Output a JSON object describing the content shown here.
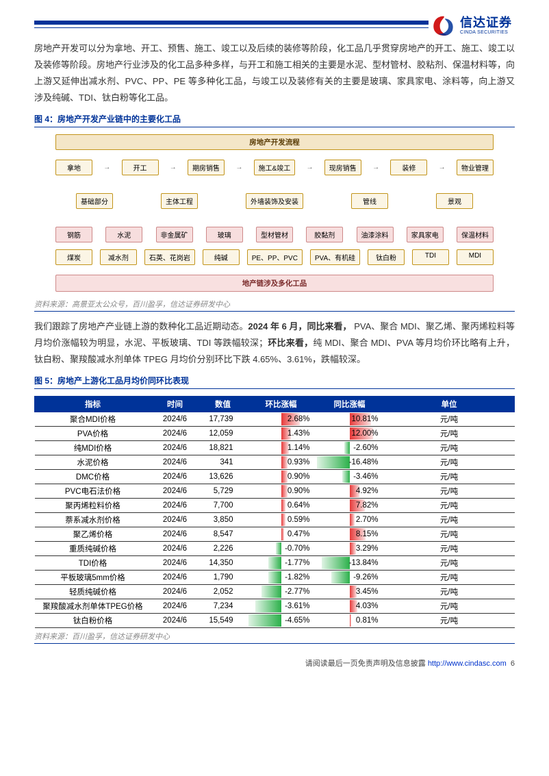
{
  "colors": {
    "brand": "#003399",
    "pos_bar": "#e63939",
    "neg_bar": "#2bb04a"
  },
  "logo": {
    "cn": "信达证券",
    "en": "CINDA SECURITIES"
  },
  "para1": "房地产开发可以分为拿地、开工、预售、施工、竣工以及后续的装修等阶段，化工品几乎贯穿房地产的开工、施工、竣工以及装修等阶段。房地产行业涉及的化工品多种多样，与开工和施工相关的主要是水泥、型材管材、胶粘剂、保温材料等，向上游又延伸出减水剂、PVC、PP、PE 等多种化工品，与竣工以及装修有关的主要是玻璃、家具家电、涂料等，向上游又涉及纯碱、TDI、钛白粉等化工品。",
  "fig4_title": "图 4：房地产开发产业链中的主要化工品",
  "fig4_source": "资料来源：高景亚太公众号，百川盈孚，信达证券研发中心",
  "diagram": {
    "header": "房地产开发流程",
    "footer": "地产链涉及多化工品",
    "row1": [
      "拿地",
      "开工",
      "期房销售",
      "施工&竣工",
      "现房销售",
      "装修",
      "物业管理"
    ],
    "row2": [
      "基础部分",
      "主体工程",
      "外墙装饰及安装",
      "管线",
      "景观"
    ],
    "row3": [
      "钢筋",
      "水泥",
      "非金属矿",
      "玻璃",
      "型材管材",
      "胶黏剂",
      "油漆涂料",
      "家具家电",
      "保温材料"
    ],
    "row4": [
      "煤炭",
      "减水剂",
      "石英、花岗岩",
      "纯碱",
      "PE、PP、PVC",
      "PVA、有机硅",
      "钛白粉",
      "TDI",
      "MDI"
    ]
  },
  "para2_pre": "我们跟踪了房地产产业链上游的数种化工品近期动态。",
  "para2_b1": "2024 年 6 月，同比来看，",
  "para2_mid": " PVA、聚合 MDI、聚乙烯、聚丙烯粒料等月均价涨幅较为明显，水泥、平板玻璃、TDI 等跌幅较深；",
  "para2_b2": "环比来看，",
  "para2_end": "纯 MDI、聚合 MDI、PVA 等月均价环比略有上升，钛白粉、聚羧酸减水剂单体 TPEG 月均价分别环比下跌 4.65%、3.61%，跌幅较深。",
  "fig5_title": "图 5：房地产上游化工品月均价同环比表现",
  "fig5_source": "资料来源：百川盈孚，信达证券研发中心",
  "table": {
    "headers": [
      "指标",
      "时间",
      "数值",
      "环比涨幅",
      "同比涨幅",
      "单位"
    ],
    "max_mom": 4.65,
    "max_yoy": 16.48,
    "rows": [
      {
        "name": "聚合MDI价格",
        "time": "2024/6",
        "val": "17,739",
        "mom": 2.68,
        "yoy": 10.81,
        "unit": "元/吨"
      },
      {
        "name": "PVA价格",
        "time": "2024/6",
        "val": "12,059",
        "mom": 1.43,
        "yoy": 12.0,
        "unit": "元/吨"
      },
      {
        "name": "纯MDI价格",
        "time": "2024/6",
        "val": "18,821",
        "mom": 1.14,
        "yoy": -2.6,
        "unit": "元/吨"
      },
      {
        "name": "水泥价格",
        "time": "2024/6",
        "val": "341",
        "mom": 0.93,
        "yoy": -16.48,
        "unit": "元/吨"
      },
      {
        "name": "DMC价格",
        "time": "2024/6",
        "val": "13,626",
        "mom": 0.9,
        "yoy": -3.46,
        "unit": "元/吨"
      },
      {
        "name": "PVC电石法价格",
        "time": "2024/6",
        "val": "5,729",
        "mom": 0.9,
        "yoy": 4.92,
        "unit": "元/吨"
      },
      {
        "name": "聚丙烯粒料价格",
        "time": "2024/6",
        "val": "7,700",
        "mom": 0.64,
        "yoy": 7.82,
        "unit": "元/吨"
      },
      {
        "name": "萘系减水剂价格",
        "time": "2024/6",
        "val": "3,850",
        "mom": 0.59,
        "yoy": 2.7,
        "unit": "元/吨"
      },
      {
        "name": "聚乙烯价格",
        "time": "2024/6",
        "val": "8,547",
        "mom": 0.47,
        "yoy": 8.15,
        "unit": "元/吨"
      },
      {
        "name": "重质纯碱价格",
        "time": "2024/6",
        "val": "2,226",
        "mom": -0.7,
        "yoy": 3.29,
        "unit": "元/吨"
      },
      {
        "name": "TDI价格",
        "time": "2024/6",
        "val": "14,350",
        "mom": -1.77,
        "yoy": -13.84,
        "unit": "元/吨"
      },
      {
        "name": "平板玻璃5mm价格",
        "time": "2024/6",
        "val": "1,790",
        "mom": -1.82,
        "yoy": -9.26,
        "unit": "元/吨"
      },
      {
        "name": "轻质纯碱价格",
        "time": "2024/6",
        "val": "2,052",
        "mom": -2.77,
        "yoy": 3.45,
        "unit": "元/吨"
      },
      {
        "name": "聚羧酸减水剂单体TPEG价格",
        "time": "2024/6",
        "val": "7,234",
        "mom": -3.61,
        "yoy": 4.03,
        "unit": "元/吨"
      },
      {
        "name": "钛白粉价格",
        "time": "2024/6",
        "val": "15,549",
        "mom": -4.65,
        "yoy": 0.81,
        "unit": "元/吨"
      }
    ]
  },
  "footer_text": "请阅读最后一页免责声明及信息披露 ",
  "footer_link": "http://www.cindasc.com",
  "page_no": "6"
}
